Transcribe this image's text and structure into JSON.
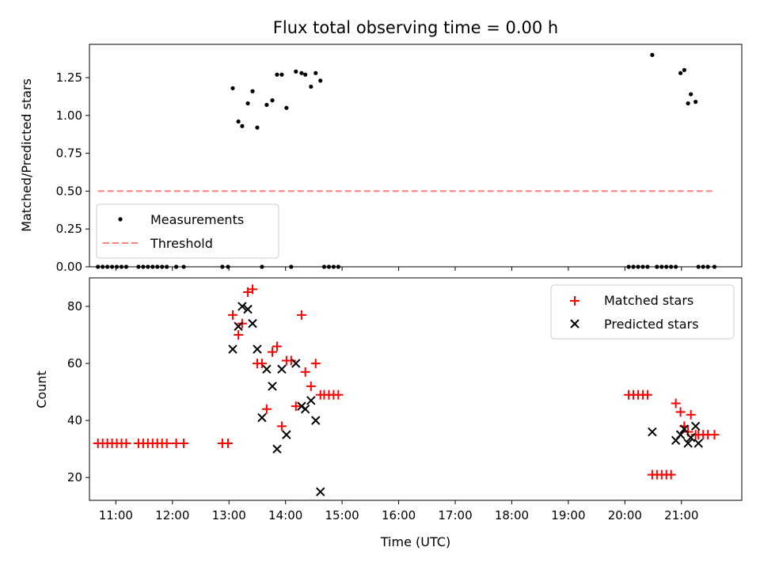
{
  "chart_data": [
    {
      "type": "scatter",
      "title": "Flux total observing time = 0.00 h",
      "xlabel": "",
      "ylabel": "Matched/Predicted stars",
      "xlim": [
        "10:32",
        "22:04"
      ],
      "ylim": [
        0,
        1.47
      ],
      "yticks": [
        "0.00",
        "0.25",
        "0.50",
        "0.75",
        "1.00",
        "1.25"
      ],
      "legend": "lower-left",
      "series": [
        {
          "name": "Measurements",
          "marker": "dot",
          "color": "#000000",
          "x": [
            "10:41",
            "10:46",
            "10:51",
            "10:56",
            "11:01",
            "11:06",
            "11:11",
            "11:24",
            "11:29",
            "11:34",
            "11:39",
            "11:44",
            "11:49",
            "11:54",
            "12:04",
            "12:12",
            "12:53",
            "12:59",
            "13:04",
            "13:10",
            "13:14",
            "13:20",
            "13:25",
            "13:30",
            "13:35",
            "13:40",
            "13:46",
            "13:51",
            "13:56",
            "14:01",
            "14:06",
            "14:11",
            "14:17",
            "14:21",
            "14:27",
            "14:32",
            "14:37",
            "14:41",
            "14:46",
            "14:51",
            "14:56",
            "20:04",
            "20:09",
            "20:14",
            "20:19",
            "20:24",
            "20:29",
            "20:34",
            "20:39",
            "20:44",
            "20:49",
            "20:54",
            "20:59",
            "21:03",
            "21:07",
            "21:10",
            "21:15",
            "21:18",
            "21:23",
            "21:28",
            "21:35"
          ],
          "y": [
            0,
            0,
            0,
            0,
            0,
            0,
            0,
            0,
            0,
            0,
            0,
            0,
            0,
            0,
            0,
            0,
            0,
            0,
            1.18,
            0.96,
            0.93,
            1.08,
            1.16,
            0.92,
            0,
            1.07,
            1.1,
            1.27,
            1.27,
            1.05,
            0,
            1.29,
            1.28,
            1.27,
            1.19,
            1.28,
            1.23,
            0,
            0,
            0,
            0,
            0,
            0,
            0,
            0,
            0,
            1.4,
            0,
            0,
            0,
            0,
            0,
            1.28,
            1.3,
            1.08,
            1.14,
            1.09,
            0,
            0,
            0,
            0
          ]
        },
        {
          "name": "Threshold",
          "line": "dashed",
          "color": "#ff7f7f",
          "x": [
            "10:41",
            "21:35"
          ],
          "y": [
            0.5,
            0.5
          ]
        }
      ]
    },
    {
      "type": "scatter",
      "title": "",
      "xlabel": "Time (UTC)",
      "ylabel": "Count",
      "xlim": [
        "10:32",
        "22:04"
      ],
      "ylim": [
        12,
        90
      ],
      "xticks": [
        "11:00",
        "12:00",
        "13:00",
        "14:00",
        "15:00",
        "16:00",
        "17:00",
        "18:00",
        "19:00",
        "20:00",
        "21:00"
      ],
      "yticks": [
        "20",
        "40",
        "60",
        "80"
      ],
      "legend": "top-right",
      "series": [
        {
          "name": "Matched stars",
          "marker": "plus",
          "color": "#ff0000",
          "x": [
            "10:41",
            "10:46",
            "10:51",
            "10:56",
            "11:01",
            "11:06",
            "11:11",
            "11:24",
            "11:29",
            "11:34",
            "11:39",
            "11:44",
            "11:49",
            "11:54",
            "12:04",
            "12:12",
            "12:53",
            "12:59",
            "13:04",
            "13:10",
            "13:14",
            "13:20",
            "13:25",
            "13:30",
            "13:35",
            "13:40",
            "13:46",
            "13:51",
            "13:56",
            "14:01",
            "14:06",
            "14:11",
            "14:17",
            "14:21",
            "14:27",
            "14:32",
            "14:37",
            "14:41",
            "14:46",
            "14:51",
            "14:56",
            "20:04",
            "20:09",
            "20:14",
            "20:19",
            "20:24",
            "20:29",
            "20:34",
            "20:39",
            "20:44",
            "20:49",
            "20:54",
            "20:59",
            "21:03",
            "21:07",
            "21:10",
            "21:15",
            "21:18",
            "21:23",
            "21:28",
            "21:35"
          ],
          "y": [
            32,
            32,
            32,
            32,
            32,
            32,
            32,
            32,
            32,
            32,
            32,
            32,
            32,
            32,
            32,
            32,
            32,
            32,
            77,
            70,
            74,
            85,
            86,
            60,
            60,
            44,
            64,
            66,
            38,
            61,
            61,
            45,
            77,
            57,
            52,
            60,
            49,
            49,
            49,
            49,
            49,
            49,
            49,
            49,
            49,
            49,
            21,
            21,
            21,
            21,
            21,
            46,
            43,
            38,
            36,
            42,
            35,
            35,
            35,
            35,
            35
          ]
        },
        {
          "name": "Predicted stars",
          "marker": "cross",
          "color": "#000000",
          "x": [
            "13:04",
            "13:10",
            "13:14",
            "13:20",
            "13:25",
            "13:30",
            "13:35",
            "13:40",
            "13:46",
            "13:51",
            "13:56",
            "14:01",
            "14:11",
            "14:17",
            "14:21",
            "14:27",
            "14:32",
            "14:37",
            "20:29",
            "20:54",
            "20:59",
            "21:03",
            "21:07",
            "21:10",
            "21:15",
            "21:18"
          ],
          "y": [
            65,
            73,
            80,
            79,
            74,
            65,
            41,
            58,
            52,
            30,
            58,
            35,
            60,
            45,
            44,
            47,
            40,
            15,
            36,
            33,
            35,
            37,
            32,
            34,
            38,
            32
          ]
        }
      ]
    }
  ]
}
